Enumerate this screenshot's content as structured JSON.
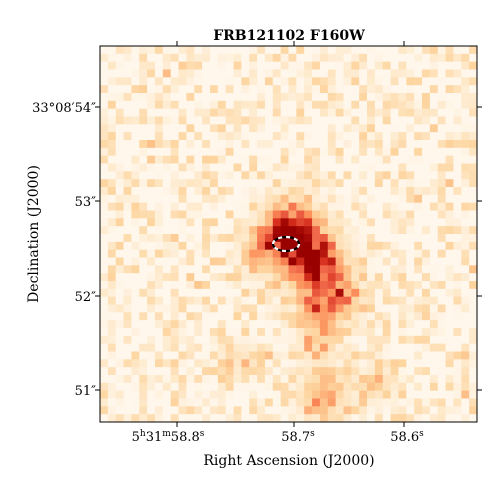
{
  "figure": {
    "title": "FRB121102 F160W",
    "xlabel": "Right Ascension (J2000)",
    "ylabel": "Declination (J2000)",
    "x_tick_labels": [
      {
        "text": "5h31m58.8s",
        "parts": [
          "5",
          "h",
          "31",
          "m",
          "58.8",
          "s"
        ]
      },
      {
        "text": "58.7s",
        "parts": [
          "58.7",
          "s"
        ]
      },
      {
        "text": "58.6s",
        "parts": [
          "58.6",
          "s"
        ]
      }
    ],
    "y_tick_labels": [
      "33°08′54″",
      "53″",
      "52″",
      "51″"
    ],
    "colormap": "OrRd",
    "marker": "dashed black-and-white ellipse marking FRB localization"
  }
}
